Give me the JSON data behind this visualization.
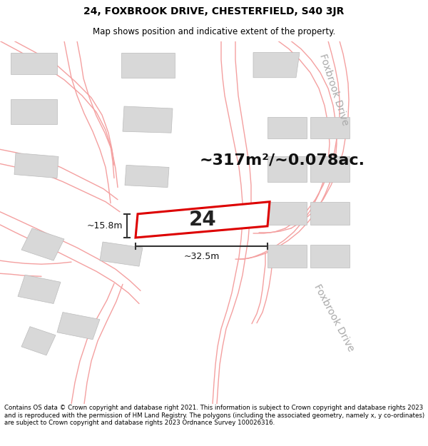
{
  "title_line1": "24, FOXBROOK DRIVE, CHESTERFIELD, S40 3JR",
  "title_line2": "Map shows position and indicative extent of the property.",
  "footer_text": "Contains OS data © Crown copyright and database right 2021. This information is subject to Crown copyright and database rights 2023 and is reproduced with the permission of HM Land Registry. The polygons (including the associated geometry, namely x, y co-ordinates) are subject to Crown copyright and database rights 2023 Ordnance Survey 100026316.",
  "area_label": "~317m²/~0.078ac.",
  "plot_number": "24",
  "dim_width": "~32.5m",
  "dim_height": "~15.8m",
  "map_bg_color": "#ffffff",
  "building_color": "#d8d8d8",
  "building_edge_color": "#bbbbbb",
  "plot_fill": "#ffffff",
  "plot_edge_color": "#dd0000",
  "road_line_color": "#f4a0a0",
  "road_text_color": "#aaaaaa",
  "dim_line_color": "#333333",
  "title_fontsize": 10,
  "subtitle_fontsize": 8.5,
  "footer_fontsize": 6.2,
  "area_fontsize": 16,
  "number_fontsize": 20,
  "road_label_fontsize": 10,
  "dim_fontsize": 9
}
